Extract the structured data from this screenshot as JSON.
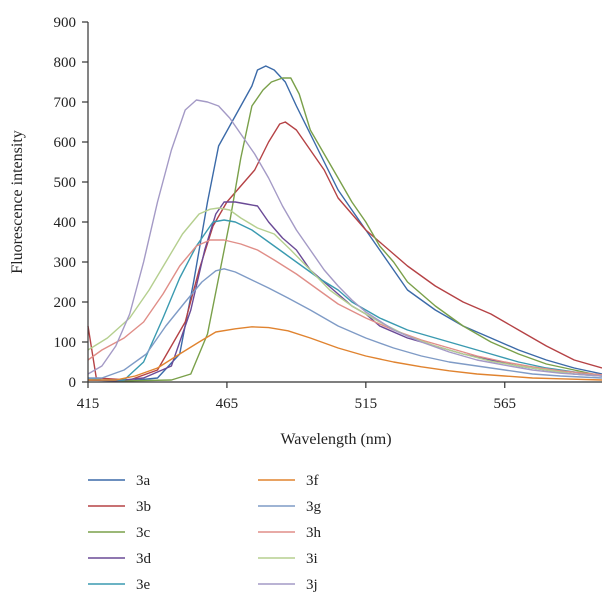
{
  "chart_data": {
    "type": "line",
    "title": "",
    "xlabel": "Wavelength (nm)",
    "ylabel": "Fluorescence intensity",
    "xlim": [
      415,
      600
    ],
    "ylim": [
      0,
      900
    ],
    "x_ticks": [
      415,
      465,
      515,
      565
    ],
    "y_ticks": [
      0,
      100,
      200,
      300,
      400,
      500,
      600,
      700,
      800,
      900
    ],
    "grid": false,
    "legend_position": "bottom",
    "series": [
      {
        "name": "3a",
        "color": "#3b6aa8",
        "points": [
          [
            415,
            5
          ],
          [
            430,
            3
          ],
          [
            440,
            10
          ],
          [
            448,
            70
          ],
          [
            453,
            250
          ],
          [
            458,
            450
          ],
          [
            462,
            590
          ],
          [
            466,
            640
          ],
          [
            470,
            690
          ],
          [
            474,
            740
          ],
          [
            476,
            780
          ],
          [
            479,
            790
          ],
          [
            482,
            780
          ],
          [
            486,
            750
          ],
          [
            490,
            690
          ],
          [
            495,
            620
          ],
          [
            500,
            550
          ],
          [
            505,
            480
          ],
          [
            510,
            430
          ],
          [
            515,
            380
          ],
          [
            520,
            330
          ],
          [
            525,
            280
          ],
          [
            530,
            230
          ],
          [
            540,
            180
          ],
          [
            550,
            140
          ],
          [
            560,
            110
          ],
          [
            570,
            80
          ],
          [
            580,
            55
          ],
          [
            590,
            35
          ],
          [
            600,
            20
          ]
        ]
      },
      {
        "name": "3b",
        "color": "#b54245",
        "points": [
          [
            415,
            140
          ],
          [
            418,
            10
          ],
          [
            430,
            5
          ],
          [
            440,
            30
          ],
          [
            450,
            150
          ],
          [
            455,
            280
          ],
          [
            460,
            390
          ],
          [
            465,
            450
          ],
          [
            470,
            490
          ],
          [
            475,
            530
          ],
          [
            480,
            600
          ],
          [
            484,
            645
          ],
          [
            486,
            650
          ],
          [
            490,
            630
          ],
          [
            495,
            580
          ],
          [
            500,
            530
          ],
          [
            505,
            460
          ],
          [
            510,
            420
          ],
          [
            515,
            380
          ],
          [
            520,
            350
          ],
          [
            525,
            320
          ],
          [
            530,
            290
          ],
          [
            540,
            240
          ],
          [
            550,
            200
          ],
          [
            560,
            170
          ],
          [
            570,
            130
          ],
          [
            580,
            90
          ],
          [
            590,
            55
          ],
          [
            600,
            35
          ]
        ]
      },
      {
        "name": "3c",
        "color": "#7aa04a",
        "points": [
          [
            415,
            5
          ],
          [
            430,
            3
          ],
          [
            445,
            5
          ],
          [
            452,
            20
          ],
          [
            458,
            120
          ],
          [
            462,
            260
          ],
          [
            466,
            400
          ],
          [
            470,
            560
          ],
          [
            474,
            690
          ],
          [
            478,
            730
          ],
          [
            481,
            750
          ],
          [
            485,
            760
          ],
          [
            488,
            760
          ],
          [
            491,
            720
          ],
          [
            495,
            630
          ],
          [
            500,
            570
          ],
          [
            505,
            510
          ],
          [
            510,
            450
          ],
          [
            515,
            400
          ],
          [
            520,
            340
          ],
          [
            525,
            300
          ],
          [
            530,
            250
          ],
          [
            540,
            190
          ],
          [
            550,
            140
          ],
          [
            560,
            100
          ],
          [
            570,
            70
          ],
          [
            580,
            45
          ],
          [
            590,
            30
          ],
          [
            600,
            15
          ]
        ]
      },
      {
        "name": "3d",
        "color": "#6a4a96",
        "points": [
          [
            415,
            5
          ],
          [
            425,
            3
          ],
          [
            435,
            10
          ],
          [
            445,
            40
          ],
          [
            452,
            180
          ],
          [
            457,
            330
          ],
          [
            461,
            420
          ],
          [
            464,
            450
          ],
          [
            468,
            450
          ],
          [
            472,
            445
          ],
          [
            476,
            440
          ],
          [
            480,
            400
          ],
          [
            485,
            360
          ],
          [
            490,
            330
          ],
          [
            495,
            280
          ],
          [
            500,
            250
          ],
          [
            505,
            220
          ],
          [
            510,
            190
          ],
          [
            515,
            170
          ],
          [
            520,
            140
          ],
          [
            530,
            110
          ],
          [
            540,
            90
          ],
          [
            550,
            70
          ],
          [
            560,
            55
          ],
          [
            570,
            40
          ],
          [
            580,
            30
          ],
          [
            590,
            20
          ],
          [
            600,
            15
          ]
        ]
      },
      {
        "name": "3e",
        "color": "#3a9ab0",
        "points": [
          [
            415,
            10
          ],
          [
            420,
            5
          ],
          [
            428,
            5
          ],
          [
            435,
            50
          ],
          [
            442,
            160
          ],
          [
            448,
            260
          ],
          [
            454,
            340
          ],
          [
            460,
            400
          ],
          [
            464,
            405
          ],
          [
            468,
            400
          ],
          [
            474,
            380
          ],
          [
            480,
            350
          ],
          [
            486,
            320
          ],
          [
            492,
            290
          ],
          [
            498,
            260
          ],
          [
            505,
            230
          ],
          [
            510,
            200
          ],
          [
            515,
            180
          ],
          [
            520,
            160
          ],
          [
            530,
            130
          ],
          [
            540,
            110
          ],
          [
            550,
            90
          ],
          [
            560,
            70
          ],
          [
            570,
            50
          ],
          [
            580,
            35
          ],
          [
            590,
            25
          ],
          [
            600,
            15
          ]
        ]
      },
      {
        "name": "3f",
        "color": "#e0832f",
        "points": [
          [
            415,
            5
          ],
          [
            425,
            5
          ],
          [
            432,
            15
          ],
          [
            440,
            35
          ],
          [
            448,
            70
          ],
          [
            455,
            100
          ],
          [
            461,
            125
          ],
          [
            468,
            133
          ],
          [
            474,
            138
          ],
          [
            480,
            136
          ],
          [
            487,
            128
          ],
          [
            495,
            110
          ],
          [
            505,
            85
          ],
          [
            515,
            65
          ],
          [
            525,
            50
          ],
          [
            535,
            38
          ],
          [
            545,
            28
          ],
          [
            555,
            20
          ],
          [
            565,
            15
          ],
          [
            575,
            10
          ],
          [
            585,
            8
          ],
          [
            600,
            5
          ]
        ]
      },
      {
        "name": "3g",
        "color": "#7f9bc6",
        "points": [
          [
            415,
            10
          ],
          [
            420,
            10
          ],
          [
            428,
            30
          ],
          [
            436,
            70
          ],
          [
            443,
            140
          ],
          [
            450,
            200
          ],
          [
            456,
            250
          ],
          [
            461,
            278
          ],
          [
            464,
            283
          ],
          [
            468,
            275
          ],
          [
            474,
            255
          ],
          [
            480,
            235
          ],
          [
            487,
            210
          ],
          [
            495,
            180
          ],
          [
            505,
            140
          ],
          [
            515,
            110
          ],
          [
            525,
            85
          ],
          [
            535,
            65
          ],
          [
            545,
            50
          ],
          [
            555,
            40
          ],
          [
            565,
            30
          ],
          [
            575,
            20
          ],
          [
            585,
            15
          ],
          [
            600,
            10
          ]
        ]
      },
      {
        "name": "3h",
        "color": "#e08e88",
        "points": [
          [
            415,
            55
          ],
          [
            420,
            80
          ],
          [
            428,
            110
          ],
          [
            435,
            150
          ],
          [
            442,
            220
          ],
          [
            448,
            290
          ],
          [
            454,
            340
          ],
          [
            459,
            355
          ],
          [
            464,
            355
          ],
          [
            470,
            345
          ],
          [
            476,
            330
          ],
          [
            482,
            305
          ],
          [
            490,
            270
          ],
          [
            498,
            230
          ],
          [
            505,
            195
          ],
          [
            515,
            160
          ],
          [
            525,
            130
          ],
          [
            535,
            105
          ],
          [
            545,
            85
          ],
          [
            555,
            65
          ],
          [
            565,
            50
          ],
          [
            575,
            38
          ],
          [
            585,
            28
          ],
          [
            600,
            18
          ]
        ]
      },
      {
        "name": "3i",
        "color": "#b5cf8f",
        "points": [
          [
            415,
            80
          ],
          [
            422,
            110
          ],
          [
            430,
            160
          ],
          [
            437,
            230
          ],
          [
            443,
            300
          ],
          [
            449,
            370
          ],
          [
            455,
            420
          ],
          [
            459,
            432
          ],
          [
            462,
            435
          ],
          [
            466,
            430
          ],
          [
            470,
            410
          ],
          [
            476,
            385
          ],
          [
            482,
            370
          ],
          [
            488,
            330
          ],
          [
            495,
            280
          ],
          [
            502,
            230
          ],
          [
            510,
            190
          ],
          [
            520,
            150
          ],
          [
            530,
            115
          ],
          [
            540,
            90
          ],
          [
            550,
            70
          ],
          [
            560,
            52
          ],
          [
            570,
            40
          ],
          [
            580,
            30
          ],
          [
            590,
            20
          ],
          [
            600,
            15
          ]
        ]
      },
      {
        "name": "3j",
        "color": "#a49ac6",
        "points": [
          [
            415,
            20
          ],
          [
            420,
            40
          ],
          [
            425,
            90
          ],
          [
            430,
            170
          ],
          [
            435,
            300
          ],
          [
            440,
            450
          ],
          [
            445,
            580
          ],
          [
            450,
            680
          ],
          [
            454,
            705
          ],
          [
            458,
            700
          ],
          [
            462,
            690
          ],
          [
            466,
            660
          ],
          [
            470,
            620
          ],
          [
            475,
            570
          ],
          [
            480,
            510
          ],
          [
            485,
            440
          ],
          [
            490,
            380
          ],
          [
            495,
            330
          ],
          [
            500,
            280
          ],
          [
            505,
            240
          ],
          [
            510,
            205
          ],
          [
            515,
            175
          ],
          [
            525,
            130
          ],
          [
            535,
            100
          ],
          [
            545,
            75
          ],
          [
            555,
            55
          ],
          [
            565,
            42
          ],
          [
            575,
            30
          ],
          [
            585,
            22
          ],
          [
            600,
            15
          ]
        ]
      }
    ]
  }
}
